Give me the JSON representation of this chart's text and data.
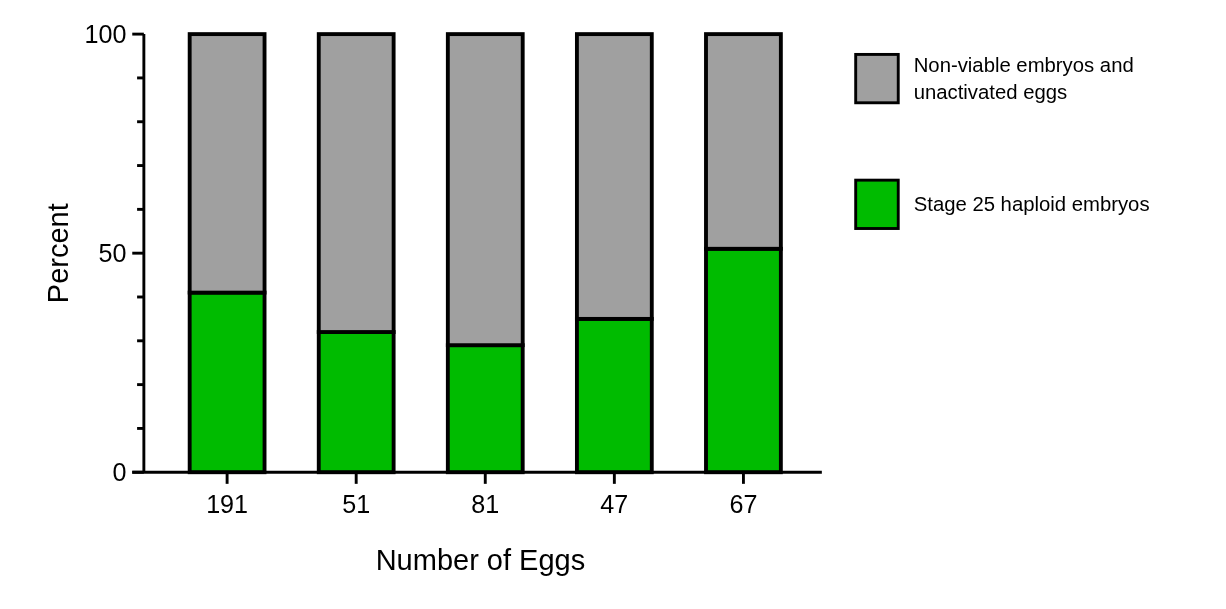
{
  "chart_data": {
    "type": "bar",
    "stacked": true,
    "xlabel": "Number of Eggs",
    "ylabel": "Percent",
    "categories": [
      "191",
      "51",
      "81",
      "47",
      "67"
    ],
    "series": [
      {
        "name": "Stage 25 haploid embryos",
        "color": "#00bb00",
        "values": [
          41,
          32,
          29,
          35,
          51
        ]
      },
      {
        "name": "Non-viable embryos and unactivated eggs",
        "color": "#a0a0a0",
        "values": [
          59,
          68,
          71,
          65,
          49
        ]
      }
    ],
    "ylim": [
      0,
      100
    ],
    "yticks": [
      0,
      {
        "value": 10,
        "label": null
      },
      {
        "value": 20,
        "label": null
      },
      {
        "value": 30,
        "label": null
      },
      {
        "value": 40,
        "label": null
      },
      50,
      {
        "value": 60,
        "label": null
      },
      {
        "value": 70,
        "label": null
      },
      {
        "value": 80,
        "label": null
      },
      {
        "value": 90,
        "label": null
      },
      100
    ],
    "grid": false,
    "legend": "right"
  }
}
